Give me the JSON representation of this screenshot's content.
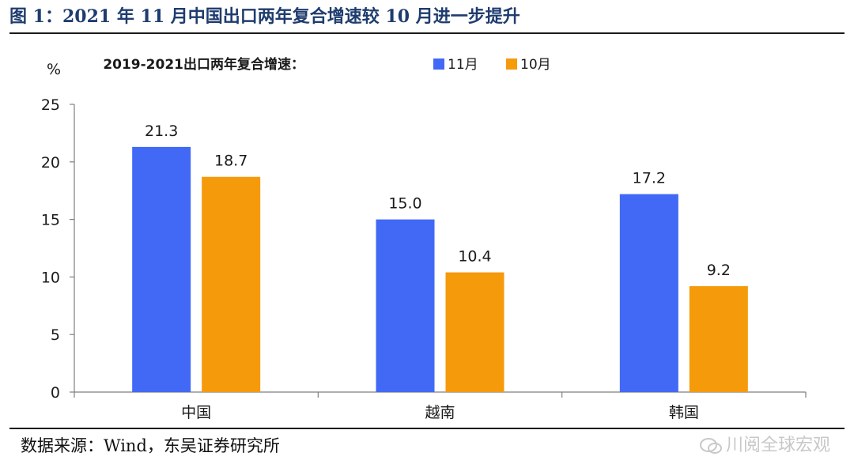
{
  "figure_title": "图 1：2021 年 11 月中国出口两年复合增速较 10 月进一步提升",
  "source": "数据来源：Wind，东吴证券研究所",
  "watermark": "川阅全球宏观",
  "chart_data": {
    "type": "bar",
    "title": "2019-2021出口两年复合增速：",
    "ylabel": "%",
    "ylim": [
      0,
      25
    ],
    "yticks": [
      0,
      5,
      10,
      15,
      20,
      25
    ],
    "categories": [
      "中国",
      "越南",
      "韩国"
    ],
    "series": [
      {
        "name": "11月",
        "color": "#4169f5",
        "values": [
          21.3,
          15.0,
          17.2
        ],
        "labels": [
          "21.3",
          "15.0",
          "17.2"
        ]
      },
      {
        "name": "10月",
        "color": "#f59a0a",
        "values": [
          18.7,
          10.4,
          9.2
        ],
        "labels": [
          "18.7",
          "10.4",
          "9.2"
        ]
      }
    ],
    "legend_position": "top"
  }
}
